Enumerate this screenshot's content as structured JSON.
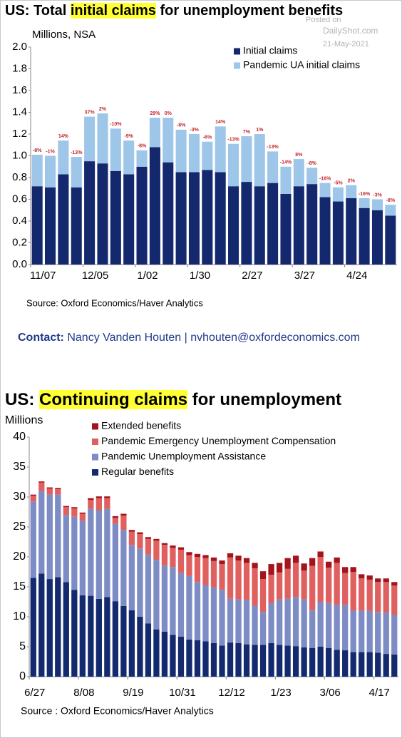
{
  "watermark": {
    "line1": "Posted on",
    "line2": "DailyShot.com",
    "line3": "21-May-2021"
  },
  "contact": {
    "label": "Contact:",
    "text": "Nancy Vanden Houten | nvhouten@oxfordeconomics.com"
  },
  "chart_data": [
    {
      "type": "stacked_bar",
      "title": [
        "US: Total ",
        "initial claims",
        " for unemployment benefits"
      ],
      "title_highlight": 1,
      "y_label": "Millions, NSA",
      "source": "Source: Oxford Economics/Haver Analytics",
      "categories": [
        "11/07",
        null,
        null,
        null,
        "12/05",
        null,
        null,
        null,
        "1/02",
        null,
        null,
        null,
        "1/30",
        null,
        null,
        null,
        "2/27",
        null,
        null,
        null,
        "3/27",
        null,
        null,
        null,
        "4/24",
        null,
        null,
        null
      ],
      "series": [
        {
          "name": "Initial claims",
          "color": "#14286e",
          "values": [
            0.72,
            0.71,
            0.83,
            0.71,
            0.95,
            0.93,
            0.86,
            0.83,
            0.9,
            1.08,
            0.94,
            0.85,
            0.85,
            0.87,
            0.85,
            0.72,
            0.76,
            0.72,
            0.75,
            0.65,
            0.72,
            0.74,
            0.62,
            0.58,
            0.61,
            0.52,
            0.5,
            0.45
          ]
        },
        {
          "name": "Pandemic UA initial claims",
          "color": "#9ec6e8",
          "values": [
            0.29,
            0.29,
            0.31,
            0.28,
            0.41,
            0.46,
            0.39,
            0.31,
            0.15,
            0.27,
            0.41,
            0.39,
            0.35,
            0.26,
            0.42,
            0.39,
            0.42,
            0.48,
            0.29,
            0.25,
            0.25,
            0.15,
            0.13,
            0.13,
            0.12,
            0.09,
            0.1,
            0.1
          ]
        }
      ],
      "change_labels": [
        "-8%",
        "-1%",
        "14%",
        "-13%",
        "37%",
        "2%",
        "-10%",
        "-9%",
        "-8%",
        "29%",
        "0%",
        "-8%",
        "-3%",
        "-6%",
        "14%",
        "-13%",
        "7%",
        "1%",
        "-13%",
        "-14%",
        "8%",
        "-8%",
        "-16%",
        "-5%",
        "2%",
        "-16%",
        "-3%",
        "-8%"
      ],
      "change_label_color": "#c0262d",
      "ylim": [
        0,
        2.0
      ],
      "yticks": [
        {
          "value": 0,
          "label": "0.0"
        },
        {
          "value": 0.2,
          "label": "0.2"
        },
        {
          "value": 0.4,
          "label": "0.4"
        },
        {
          "value": 0.6,
          "label": "0.6"
        },
        {
          "value": 0.8,
          "label": "0.8"
        },
        {
          "value": 1.0,
          "label": "1.0"
        },
        {
          "value": 1.2,
          "label": "1.2"
        },
        {
          "value": 1.4,
          "label": "1.4"
        },
        {
          "value": 1.6,
          "label": "1.6"
        },
        {
          "value": 1.8,
          "label": "1.8"
        },
        {
          "value": 2.0,
          "label": "2.0"
        }
      ],
      "legend": "upper right",
      "grid": false
    },
    {
      "type": "stacked_bar",
      "title": [
        "US: ",
        "Continuing claims",
        " for unemployment"
      ],
      "title_highlight": 1,
      "y_label": "Millions",
      "source": "Source : Oxford Economics/Haver Analytics",
      "categories": [
        "6/27",
        null,
        null,
        null,
        null,
        null,
        "8/08",
        null,
        null,
        null,
        null,
        null,
        "9/19",
        null,
        null,
        null,
        null,
        null,
        "10/31",
        null,
        null,
        null,
        null,
        null,
        "12/12",
        null,
        null,
        null,
        null,
        null,
        "1/23",
        null,
        null,
        null,
        null,
        null,
        "3/06",
        null,
        null,
        null,
        null,
        null,
        "4/17",
        null,
        null
      ],
      "series": [
        {
          "name": "Regular benefits",
          "color": "#142a6e",
          "values": [
            16.5,
            17.2,
            16.3,
            16.6,
            15.8,
            14.5,
            13.6,
            13.5,
            13.0,
            13.3,
            12.6,
            11.8,
            11.1,
            10.0,
            8.9,
            7.9,
            7.5,
            7.0,
            6.7,
            6.2,
            6.1,
            5.9,
            5.6,
            5.2,
            5.7,
            5.6,
            5.4,
            5.3,
            5.3,
            5.6,
            5.3,
            5.2,
            5.1,
            4.9,
            4.8,
            5.0,
            4.8,
            4.5,
            4.4,
            4.1,
            4.1,
            4.1,
            4.0,
            3.8,
            3.7
          ]
        },
        {
          "name": "Pandemic Unemployment Assistance",
          "color": "#7d8cc4",
          "values": [
            12.7,
            13.8,
            14.1,
            13.8,
            11.2,
            12.2,
            12.4,
            14.5,
            14.8,
            14.7,
            12.9,
            12.7,
            10.9,
            11.4,
            11.5,
            11.6,
            11.1,
            11.3,
            10.6,
            10.6,
            9.7,
            9.4,
            9.3,
            9.3,
            7.3,
            7.3,
            7.4,
            6.5,
            5.5,
            6.7,
            7.6,
            7.8,
            8.2,
            8.0,
            6.3,
            7.5,
            7.5,
            7.5,
            7.6,
            6.9,
            6.9,
            6.9,
            6.8,
            6.9,
            6.6
          ]
        },
        {
          "name": "Pandemic Emergency Unemployment Compensation",
          "color": "#e06060",
          "values": [
            1.0,
            1.4,
            1.0,
            0.9,
            1.3,
            1.4,
            1.2,
            1.5,
            2.0,
            1.8,
            1.0,
            2.4,
            2.2,
            2.4,
            2.6,
            3.2,
            3.4,
            3.2,
            3.9,
            3.5,
            4.2,
            4.5,
            4.4,
            4.3,
            6.9,
            6.5,
            6.2,
            6.3,
            5.5,
            4.7,
            4.5,
            5.0,
            5.7,
            4.8,
            7.4,
            7.5,
            5.9,
            7.0,
            5.3,
            6.5,
            5.4,
            5.2,
            5.0,
            5.1,
            4.9
          ]
        },
        {
          "name": "Extended benefits",
          "color": "#a3141c",
          "values": [
            0.2,
            0.2,
            0.2,
            0.2,
            0.2,
            0.2,
            0.2,
            0.3,
            0.3,
            0.3,
            0.3,
            0.3,
            0.3,
            0.3,
            0.3,
            0.3,
            0.3,
            0.4,
            0.4,
            0.5,
            0.5,
            0.5,
            0.6,
            0.6,
            0.7,
            0.8,
            0.8,
            0.9,
            1.3,
            1.8,
            1.6,
            1.8,
            1.2,
            1.2,
            1.3,
            0.9,
            1.0,
            0.9,
            1.0,
            0.8,
            0.7,
            0.7,
            0.6,
            0.6,
            0.6
          ]
        }
      ],
      "ylim": [
        0,
        40
      ],
      "yticks": [
        0,
        5,
        10,
        15,
        20,
        25,
        30,
        35,
        40
      ],
      "legend": "upper left",
      "grid": false
    }
  ]
}
